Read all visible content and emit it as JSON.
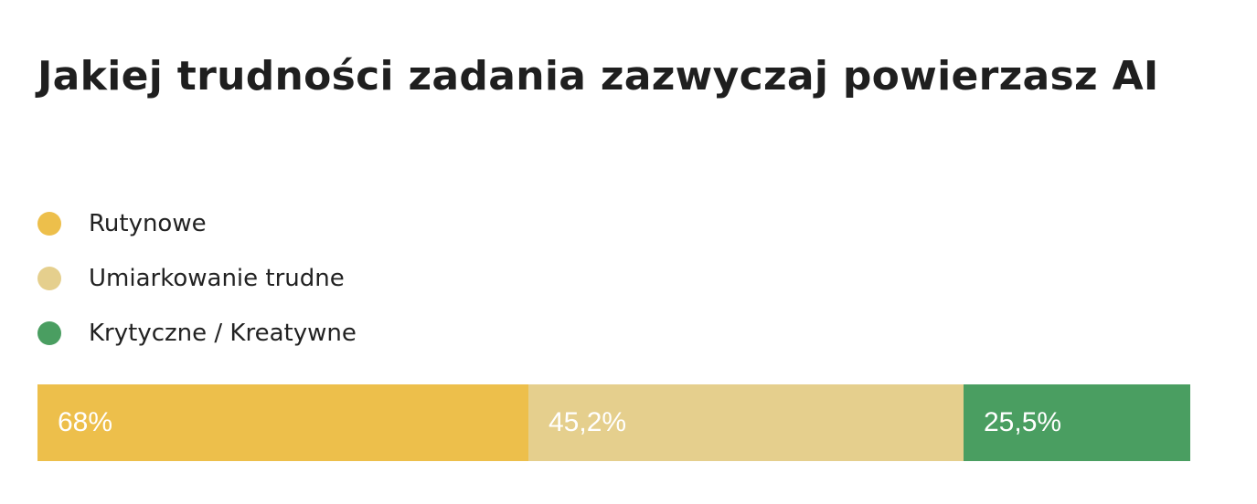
{
  "chart_data": {
    "type": "bar",
    "orientation": "horizontal-stacked",
    "title": "Jakiej trudności zadania zazwyczaj powierzasz AI",
    "legend_position": "top-left",
    "series": [
      {
        "name": "Rutynowe",
        "value": 68,
        "label": "68%",
        "color": "#EDBF4B"
      },
      {
        "name": "Umiarkowanie trudne",
        "value": 45.2,
        "label": "45,2%",
        "color": "#E5CF8D"
      },
      {
        "name": "Krytyczne / Kreatywne",
        "value": 25.5,
        "label": "25,5%",
        "color": "#4A9E61"
      }
    ]
  }
}
